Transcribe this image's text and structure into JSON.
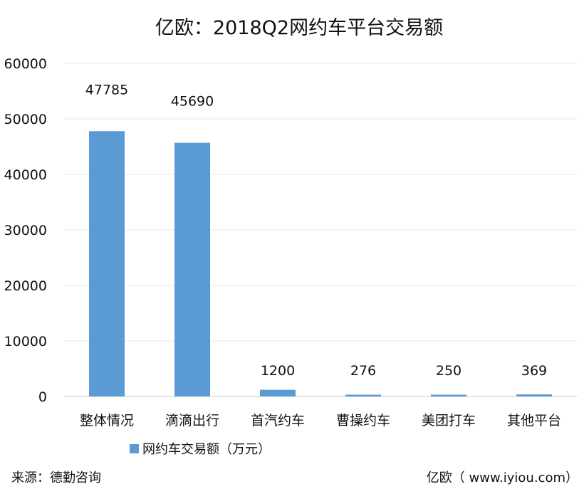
{
  "chart_data": {
    "type": "bar",
    "title": "亿欧：2018Q2网约车平台交易额",
    "categories": [
      "整体情况",
      "滴滴出行",
      "首汽约车",
      "曹操约车",
      "美团打车",
      "其他平台"
    ],
    "series": [
      {
        "name": "网约车交易额（万元）",
        "values": [
          47785,
          45690,
          1200,
          276,
          250,
          369
        ]
      }
    ],
    "data_labels": [
      "47785",
      "45690",
      "1200",
      "276",
      "250",
      "369"
    ],
    "ylim": [
      0,
      60000
    ],
    "yticks": [
      0,
      10000,
      20000,
      30000,
      40000,
      50000,
      60000
    ],
    "ytick_labels": [
      "0",
      "10000",
      "20000",
      "30000",
      "40000",
      "50000",
      "60000"
    ],
    "xlabel": "",
    "ylabel": "",
    "grid": true,
    "legend_position": "bottom-left",
    "bar_color": "#5b9bd5"
  },
  "footer": {
    "source": "来源：德勤咨询",
    "credit": "亿欧（ www.iyiou.com）"
  }
}
